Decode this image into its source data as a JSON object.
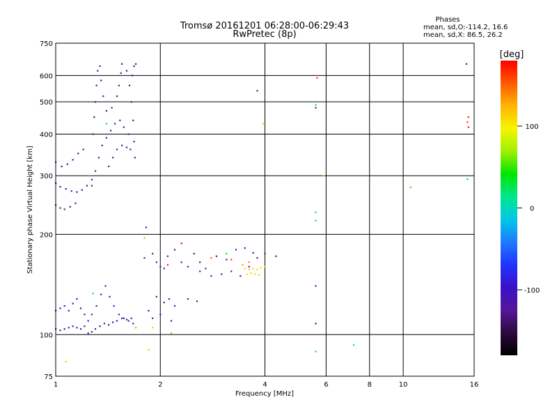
{
  "chart_data": {
    "type": "scatter",
    "title": "Tromsø 20161201 06:28:00-06:29:43",
    "subtitle": "RwPretec (8p)",
    "stats": {
      "heading": "Phases",
      "line1": "mean, sd,O:-114.2, 16.6",
      "line2": "mean, sd,X:  86.5, 26.2"
    },
    "xlabel": "Frequency [MHz]",
    "ylabel": "Stationary phase Virtual Height [km]",
    "xscale": "log",
    "yscale": "log",
    "xlim": [
      1,
      16
    ],
    "ylim": [
      75,
      750
    ],
    "xticks": [
      1,
      2,
      4,
      6,
      8,
      10,
      16
    ],
    "xtick_labels": [
      "1",
      "2",
      "4",
      "6",
      "8",
      "10",
      "16"
    ],
    "yticks": [
      75,
      100,
      200,
      300,
      400,
      500,
      600,
      750
    ],
    "ytick_labels": [
      "75",
      "100",
      "200",
      "300",
      "400",
      "500",
      "600",
      "750"
    ],
    "xgrid": [
      1,
      2,
      4,
      6,
      8,
      10,
      16
    ],
    "ygrid": [
      100,
      200,
      300,
      400,
      500,
      600
    ],
    "colorbar": {
      "label": "[deg]",
      "min": -180,
      "max": 180,
      "ticks": [
        -100,
        0,
        100
      ],
      "tick_labels": [
        "-100",
        "0",
        "100"
      ],
      "colors": [
        "#000000",
        "#2c0a3c",
        "#55169a",
        "#3a12c8",
        "#1f35ff",
        "#1e7bff",
        "#00c8e6",
        "#00e68c",
        "#00e600",
        "#a0f000",
        "#f5f500",
        "#ffb400",
        "#ff5a00",
        "#ff0000"
      ]
    },
    "points": [
      [
        1.0,
        330,
        -110
      ],
      [
        1.04,
        320,
        -110
      ],
      [
        1.08,
        325,
        -110
      ],
      [
        1.12,
        335,
        -110
      ],
      [
        1.16,
        350,
        -110
      ],
      [
        1.2,
        360,
        -110
      ],
      [
        1.0,
        285,
        -112
      ],
      [
        1.03,
        278,
        -112
      ],
      [
        1.07,
        274,
        -112
      ],
      [
        1.11,
        270,
        -112
      ],
      [
        1.15,
        268,
        -112
      ],
      [
        1.19,
        272,
        -112
      ],
      [
        1.23,
        280,
        -112
      ],
      [
        1.27,
        292,
        -112
      ],
      [
        1.0,
        245,
        -114
      ],
      [
        1.03,
        240,
        -114
      ],
      [
        1.06,
        238,
        -114
      ],
      [
        1.1,
        242,
        -114
      ],
      [
        1.14,
        248,
        -114
      ],
      [
        1.27,
        280,
        -125
      ],
      [
        1.3,
        310,
        -125
      ],
      [
        1.33,
        340,
        -125
      ],
      [
        1.36,
        370,
        -125
      ],
      [
        1.4,
        390,
        -125
      ],
      [
        1.44,
        410,
        -125
      ],
      [
        1.48,
        430,
        -125
      ],
      [
        1.53,
        440,
        -125
      ],
      [
        1.57,
        420,
        -125
      ],
      [
        1.62,
        400,
        -125
      ],
      [
        1.28,
        400,
        -130
      ],
      [
        1.29,
        450,
        -130
      ],
      [
        1.3,
        500,
        -130
      ],
      [
        1.31,
        560,
        -130
      ],
      [
        1.32,
        620,
        -130
      ],
      [
        1.34,
        640,
        -130
      ],
      [
        1.35,
        580,
        -130
      ],
      [
        1.37,
        520,
        -130
      ],
      [
        1.4,
        470,
        -130
      ],
      [
        1.45,
        480,
        -130
      ],
      [
        1.5,
        520,
        -130
      ],
      [
        1.52,
        560,
        -130
      ],
      [
        1.54,
        610,
        -130
      ],
      [
        1.55,
        650,
        -130
      ],
      [
        1.6,
        620,
        -130
      ],
      [
        1.63,
        560,
        -130
      ],
      [
        1.65,
        500,
        -130
      ],
      [
        1.67,
        440,
        -130
      ],
      [
        1.68,
        380,
        -130
      ],
      [
        1.69,
        340,
        -130
      ],
      [
        1.66,
        600,
        -130
      ],
      [
        1.68,
        640,
        -130
      ],
      [
        1.7,
        650,
        -130
      ],
      [
        1.42,
        320,
        -125
      ],
      [
        1.46,
        340,
        -125
      ],
      [
        1.5,
        360,
        -125
      ],
      [
        1.55,
        370,
        -125
      ],
      [
        1.6,
        365,
        -125
      ],
      [
        1.64,
        360,
        -125
      ],
      [
        1.25,
        300,
        30
      ],
      [
        1.4,
        430,
        30
      ],
      [
        1.0,
        118,
        -110
      ],
      [
        1.03,
        120,
        -110
      ],
      [
        1.06,
        122,
        -110
      ],
      [
        1.09,
        118,
        -110
      ],
      [
        1.12,
        124,
        -110
      ],
      [
        1.15,
        128,
        -110
      ],
      [
        1.18,
        120,
        -110
      ],
      [
        1.21,
        115,
        -110
      ],
      [
        1.24,
        110,
        -110
      ],
      [
        1.27,
        115,
        -110
      ],
      [
        1.31,
        122,
        -110
      ],
      [
        1.35,
        132,
        -110
      ],
      [
        1.39,
        140,
        -110
      ],
      [
        1.43,
        130,
        -110
      ],
      [
        1.47,
        122,
        -110
      ],
      [
        1.52,
        115,
        -110
      ],
      [
        1.57,
        112,
        -110
      ],
      [
        1.62,
        110,
        -110
      ],
      [
        1.67,
        108,
        -110
      ],
      [
        1.0,
        104,
        -112
      ],
      [
        1.03,
        103,
        -112
      ],
      [
        1.06,
        104,
        -112
      ],
      [
        1.09,
        105,
        -112
      ],
      [
        1.12,
        106,
        -112
      ],
      [
        1.15,
        105,
        -112
      ],
      [
        1.18,
        104,
        -112
      ],
      [
        1.21,
        106,
        -112
      ],
      [
        1.24,
        101,
        -112
      ],
      [
        1.27,
        102,
        -112
      ],
      [
        1.3,
        104,
        -112
      ],
      [
        1.34,
        106,
        -112
      ],
      [
        1.38,
        108,
        -112
      ],
      [
        1.42,
        107,
        -112
      ],
      [
        1.46,
        109,
        -112
      ],
      [
        1.5,
        110,
        -112
      ],
      [
        1.55,
        112,
        -112
      ],
      [
        1.6,
        111,
        -112
      ],
      [
        1.65,
        112,
        -112
      ],
      [
        1.28,
        133,
        10
      ],
      [
        1.7,
        105,
        60
      ],
      [
        1.07,
        83,
        120
      ],
      [
        1.8,
        170,
        -120
      ],
      [
        1.9,
        175,
        -120
      ],
      [
        1.95,
        165,
        -120
      ],
      [
        2.0,
        160,
        -120
      ],
      [
        2.05,
        158,
        -120
      ],
      [
        2.1,
        172,
        -120
      ],
      [
        2.2,
        180,
        -120
      ],
      [
        2.3,
        165,
        -120
      ],
      [
        2.4,
        160,
        -120
      ],
      [
        2.5,
        175,
        -120
      ],
      [
        2.6,
        165,
        -120
      ],
      [
        2.7,
        158,
        -120
      ],
      [
        1.95,
        130,
        -110
      ],
      [
        2.05,
        125,
        -110
      ],
      [
        2.12,
        128,
        -110
      ],
      [
        2.2,
        122,
        -110
      ],
      [
        2.4,
        128,
        -110
      ],
      [
        2.55,
        126,
        -110
      ],
      [
        1.85,
        118,
        -110
      ],
      [
        1.9,
        112,
        -110
      ],
      [
        2.0,
        115,
        -110
      ],
      [
        2.15,
        110,
        -110
      ],
      [
        2.6,
        155,
        -125
      ],
      [
        2.8,
        150,
        -125
      ],
      [
        3.0,
        152,
        -125
      ],
      [
        3.2,
        155,
        -125
      ],
      [
        3.4,
        150,
        -125
      ],
      [
        3.6,
        160,
        -125
      ],
      [
        3.8,
        170,
        -125
      ],
      [
        4.0,
        175,
        -125
      ],
      [
        4.3,
        172,
        -125
      ],
      [
        3.3,
        180,
        -110
      ],
      [
        3.5,
        182,
        -110
      ],
      [
        3.7,
        176,
        -110
      ],
      [
        3.1,
        168,
        -110
      ],
      [
        2.9,
        172,
        -110
      ],
      [
        3.5,
        158,
        110
      ],
      [
        3.6,
        157,
        110
      ],
      [
        3.7,
        158,
        110
      ],
      [
        3.8,
        157,
        110
      ],
      [
        3.9,
        159,
        110
      ],
      [
        4.0,
        160,
        110
      ],
      [
        3.55,
        152,
        110
      ],
      [
        3.65,
        153,
        110
      ],
      [
        3.75,
        152,
        110
      ],
      [
        3.85,
        151,
        110
      ],
      [
        3.45,
        162,
        130
      ],
      [
        3.6,
        165,
        140
      ],
      [
        3.2,
        168,
        160
      ],
      [
        2.3,
        188,
        180
      ],
      [
        2.1,
        162,
        170
      ],
      [
        2.8,
        170,
        150
      ],
      [
        1.82,
        210,
        -105
      ],
      [
        1.8,
        195,
        130
      ],
      [
        3.1,
        175,
        40
      ],
      [
        1.85,
        90,
        120
      ],
      [
        2.15,
        101,
        60
      ],
      [
        1.9,
        105,
        120
      ],
      [
        3.8,
        540,
        -120
      ],
      [
        3.95,
        430,
        120
      ],
      [
        5.6,
        480,
        -110
      ],
      [
        5.6,
        490,
        20
      ],
      [
        5.65,
        590,
        160
      ],
      [
        5.6,
        233,
        -10
      ],
      [
        5.6,
        220,
        -10
      ],
      [
        5.6,
        140,
        -100
      ],
      [
        5.6,
        108,
        -110
      ],
      [
        5.6,
        89,
        20
      ],
      [
        5.9,
        300,
        120
      ],
      [
        7.2,
        93,
        10
      ],
      [
        10.5,
        277,
        50
      ],
      [
        15.2,
        650,
        -100
      ],
      [
        15.3,
        293,
        -20
      ],
      [
        15.4,
        450,
        170
      ],
      [
        15.3,
        435,
        160
      ],
      [
        15.4,
        420,
        180
      ]
    ]
  }
}
